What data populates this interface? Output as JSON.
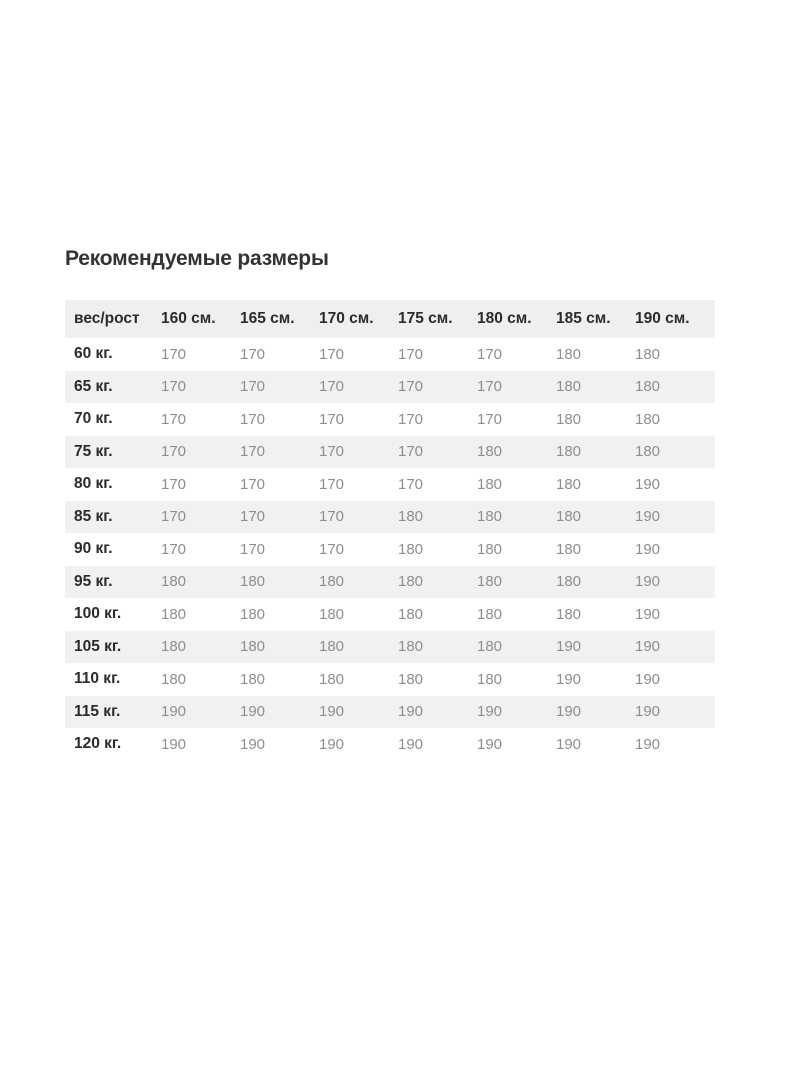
{
  "page": {
    "title": "Рекомендуемые размеры"
  },
  "colors": {
    "background": "#ffffff",
    "header_bg": "#efefef",
    "stripe_bg": "#f1f1f1",
    "label_text": "#2b2b2b",
    "value_text": "#8e8e8e",
    "title_text": "#333333"
  },
  "table": {
    "columns": [
      "вес/рост",
      "160 см.",
      "165 см.",
      "170 см.",
      "175 см.",
      "180 см.",
      "185 см.",
      "190 см."
    ],
    "rows": [
      {
        "label": "60 кг.",
        "values": [
          "170",
          "170",
          "170",
          "170",
          "170",
          "180",
          "180"
        ]
      },
      {
        "label": "65 кг.",
        "values": [
          "170",
          "170",
          "170",
          "170",
          "170",
          "180",
          "180"
        ]
      },
      {
        "label": "70 кг.",
        "values": [
          "170",
          "170",
          "170",
          "170",
          "170",
          "180",
          "180"
        ]
      },
      {
        "label": "75 кг.",
        "values": [
          "170",
          "170",
          "170",
          "170",
          "180",
          "180",
          "180"
        ]
      },
      {
        "label": "80 кг.",
        "values": [
          "170",
          "170",
          "170",
          "170",
          "180",
          "180",
          "190"
        ]
      },
      {
        "label": "85 кг.",
        "values": [
          "170",
          "170",
          "170",
          "180",
          "180",
          "180",
          "190"
        ]
      },
      {
        "label": "90 кг.",
        "values": [
          "170",
          "170",
          "170",
          "180",
          "180",
          "180",
          "190"
        ]
      },
      {
        "label": "95 кг.",
        "values": [
          "180",
          "180",
          "180",
          "180",
          "180",
          "180",
          "190"
        ]
      },
      {
        "label": "100 кг.",
        "values": [
          "180",
          "180",
          "180",
          "180",
          "180",
          "180",
          "190"
        ]
      },
      {
        "label": "105 кг.",
        "values": [
          "180",
          "180",
          "180",
          "180",
          "180",
          "190",
          "190"
        ]
      },
      {
        "label": "110 кг.",
        "values": [
          "180",
          "180",
          "180",
          "180",
          "180",
          "190",
          "190"
        ]
      },
      {
        "label": "115 кг.",
        "values": [
          "190",
          "190",
          "190",
          "190",
          "190",
          "190",
          "190"
        ]
      },
      {
        "label": "120 кг.",
        "values": [
          "190",
          "190",
          "190",
          "190",
          "190",
          "190",
          "190"
        ]
      }
    ]
  },
  "chart_data": {
    "type": "table",
    "title": "Рекомендуемые размеры",
    "columns": [
      "вес/рост",
      "160 см.",
      "165 см.",
      "170 см.",
      "175 см.",
      "180 см.",
      "185 см.",
      "190 см."
    ],
    "row_labels": [
      "60 кг.",
      "65 кг.",
      "70 кг.",
      "75 кг.",
      "80 кг.",
      "85 кг.",
      "90 кг.",
      "95 кг.",
      "100 кг.",
      "105 кг.",
      "110 кг.",
      "115 кг.",
      "120 кг."
    ],
    "values": [
      [
        170,
        170,
        170,
        170,
        170,
        180,
        180
      ],
      [
        170,
        170,
        170,
        170,
        170,
        180,
        180
      ],
      [
        170,
        170,
        170,
        170,
        170,
        180,
        180
      ],
      [
        170,
        170,
        170,
        170,
        180,
        180,
        180
      ],
      [
        170,
        170,
        170,
        170,
        180,
        180,
        190
      ],
      [
        170,
        170,
        170,
        180,
        180,
        180,
        190
      ],
      [
        170,
        170,
        170,
        180,
        180,
        180,
        190
      ],
      [
        180,
        180,
        180,
        180,
        180,
        180,
        190
      ],
      [
        180,
        180,
        180,
        180,
        180,
        180,
        190
      ],
      [
        180,
        180,
        180,
        180,
        180,
        190,
        190
      ],
      [
        180,
        180,
        180,
        180,
        180,
        190,
        190
      ],
      [
        190,
        190,
        190,
        190,
        190,
        190,
        190
      ],
      [
        190,
        190,
        190,
        190,
        190,
        190,
        190
      ]
    ],
    "layout": {
      "striped": true,
      "first_data_row_bg": "white",
      "legend_position": "none",
      "grid": false
    }
  }
}
